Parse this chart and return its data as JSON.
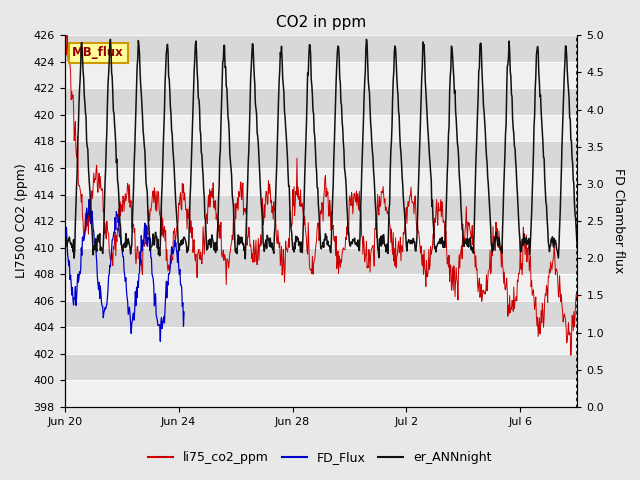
{
  "title": "CO2 in ppm",
  "ylabel_left": "LI7500 CO2 (ppm)",
  "ylabel_right": "FD Chamber flux",
  "ylim_left": [
    398,
    426
  ],
  "ylim_right": [
    0.0,
    5.0
  ],
  "yticks_left": [
    398,
    400,
    402,
    404,
    406,
    408,
    410,
    412,
    414,
    416,
    418,
    420,
    422,
    424,
    426
  ],
  "yticks_right": [
    0.0,
    0.5,
    1.0,
    1.5,
    2.0,
    2.5,
    3.0,
    3.5,
    4.0,
    4.5,
    5.0
  ],
  "xtick_labels": [
    "Jun 20",
    "Jun 24",
    "Jun 28",
    "Jul 2",
    "Jul 6"
  ],
  "xtick_positions": [
    0,
    4,
    8,
    12,
    16
  ],
  "bg_color": "#e8e8e8",
  "plot_bg_color": "#d8d8d8",
  "white_band_color": "#f0f0f0",
  "legend_entries": [
    "li75_co2_ppm",
    "FD_Flux",
    "er_ANNnight"
  ],
  "legend_colors": [
    "#cc0000",
    "#0000cc",
    "#111111"
  ],
  "mb_flux_label": "MB_flux",
  "mb_flux_color": "#990000",
  "mb_flux_bg": "#ffff99",
  "mb_flux_border": "#cc9900",
  "red_color": "#cc0000",
  "blue_color": "#0000cc",
  "black_color": "#111111",
  "n_days": 18,
  "blue_end_day": 4.2
}
